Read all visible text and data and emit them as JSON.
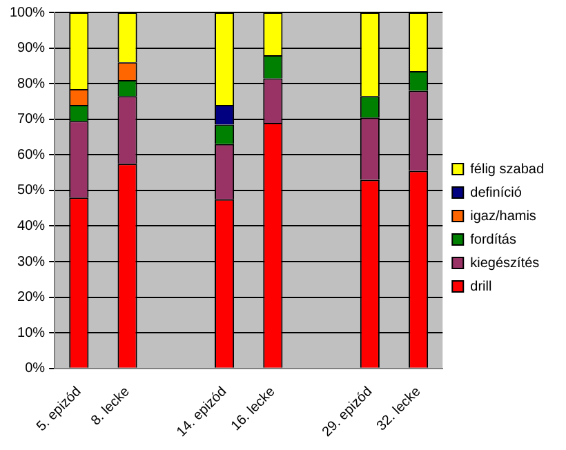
{
  "chart_data": {
    "type": "bar",
    "stacked": true,
    "categories": [
      "5. epizód",
      "8. lecke",
      null,
      "14. epizód",
      "16. lecke",
      null,
      "29. epizód",
      "32. lecke"
    ],
    "series": [
      {
        "name": "drill",
        "color": "#ff0000",
        "values": [
          48,
          57.5,
          null,
          47.5,
          69,
          null,
          53,
          55.5
        ]
      },
      {
        "name": "kiegészítés",
        "color": "#993366",
        "values": [
          21.5,
          19,
          null,
          15.5,
          12.5,
          null,
          17.5,
          22.5
        ]
      },
      {
        "name": "fordítás",
        "color": "#008000",
        "values": [
          4.5,
          4.5,
          null,
          5.5,
          6.5,
          null,
          6,
          5.5
        ]
      },
      {
        "name": "igaz/hamis",
        "color": "#ff6600",
        "values": [
          4.5,
          5,
          null,
          0,
          0,
          null,
          0,
          0
        ]
      },
      {
        "name": "definíció",
        "color": "#000080",
        "values": [
          0,
          0,
          null,
          5.5,
          0,
          null,
          0,
          0
        ]
      },
      {
        "name": "félig szabad",
        "color": "#ffff00",
        "values": [
          21.5,
          14,
          null,
          26,
          12,
          null,
          23.5,
          16.5
        ]
      }
    ],
    "ylim": [
      0,
      100
    ],
    "yticks": [
      {
        "value": 0,
        "label": "0%"
      },
      {
        "value": 10,
        "label": "10%"
      },
      {
        "value": 20,
        "label": "20%"
      },
      {
        "value": 30,
        "label": "30%"
      },
      {
        "value": 40,
        "label": "40%"
      },
      {
        "value": 50,
        "label": "50%"
      },
      {
        "value": 60,
        "label": "60%"
      },
      {
        "value": 70,
        "label": "70%"
      },
      {
        "value": 80,
        "label": "80%"
      },
      {
        "value": 90,
        "label": "90%"
      },
      {
        "value": 100,
        "label": "100%"
      }
    ],
    "grid": "y",
    "legend": "right"
  }
}
